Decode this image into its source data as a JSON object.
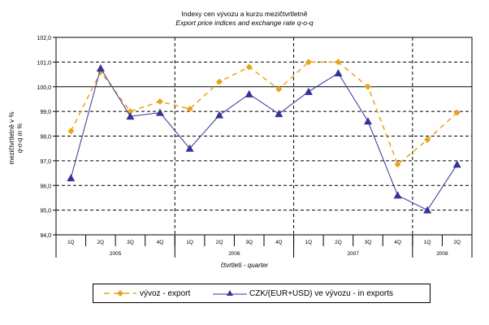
{
  "chart_data": {
    "type": "line",
    "title": "Indexy cen vývozu a kurzu mezičtvrtletně",
    "subtitle": "Export price indices and exchange rate q-o-q",
    "xlabel_cz": "čtvrtletí",
    "xlabel_en": "quarter",
    "ylabel_cz": "mezičtvrtletně v %",
    "ylabel_en": "q-o-q in %",
    "ylim": [
      94.0,
      102.0
    ],
    "yticks": [
      "94,0",
      "95,0",
      "96,0",
      "97,0",
      "98,0",
      "99,0",
      "100,0",
      "101,0",
      "102,0"
    ],
    "grid": true,
    "legend_position": "bottom",
    "categories": [
      "1Q",
      "2Q",
      "3Q",
      "4Q",
      "1Q",
      "2Q",
      "3Q",
      "4Q",
      "1Q",
      "2Q",
      "3Q",
      "4Q",
      "1Q",
      "2Q"
    ],
    "years": [
      {
        "label": "2005",
        "quarters": 4
      },
      {
        "label": "2006",
        "quarters": 4
      },
      {
        "label": "2007",
        "quarters": 4
      },
      {
        "label": "2008",
        "quarters": 2
      }
    ],
    "series": [
      {
        "name": "vývoz - export",
        "color": "#E8A317",
        "marker": "diamond",
        "line": "dashed",
        "values": [
          98.2,
          100.6,
          99.0,
          99.4,
          99.1,
          100.2,
          100.8,
          99.9,
          101.0,
          101.0,
          100.0,
          96.85,
          97.85,
          98.95
        ]
      },
      {
        "name": "CZK/(EUR+USD) ve vývozu - in exports",
        "color": "#333399",
        "marker": "triangle",
        "line": "solid",
        "values": [
          96.3,
          100.75,
          98.8,
          98.95,
          97.5,
          98.85,
          99.7,
          98.9,
          99.8,
          100.55,
          98.6,
          95.6,
          95.0,
          96.85
        ]
      }
    ]
  }
}
